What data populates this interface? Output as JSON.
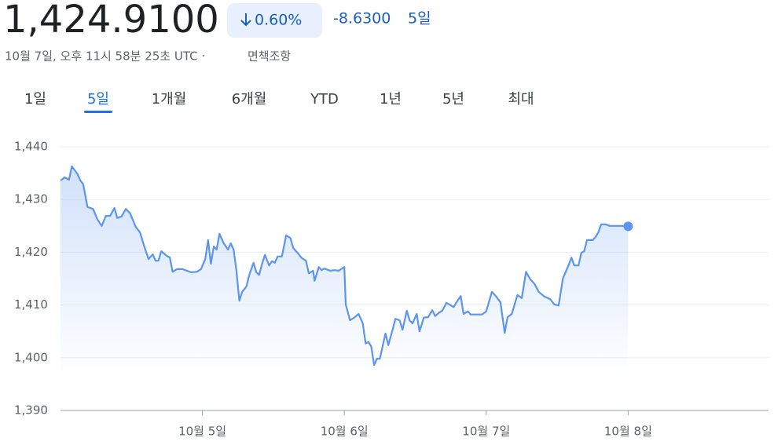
{
  "header": {
    "price": "1,424.9100",
    "change_percent": "0.60%",
    "change": "-8.6300",
    "period": "5일",
    "timestamp": "10월 7일, 오후 11시 58분 25초 UTC ·",
    "disclaimer": "면책조항"
  },
  "tabs": [
    "1일",
    "5일",
    "1개월",
    "6개월",
    "YTD",
    "1년",
    "5년",
    "최대"
  ],
  "selected_tab": 1,
  "chart_data": {
    "type": "line",
    "color": "#5b95ee",
    "x": [
      4.0,
      4.03,
      4.06,
      4.08,
      4.12,
      4.14,
      4.16,
      4.19,
      4.23,
      4.26,
      4.29,
      4.32,
      4.35,
      4.38,
      4.4,
      4.43,
      4.46,
      4.49,
      4.53,
      4.56,
      4.59,
      4.62,
      4.65,
      4.67,
      4.69,
      4.71,
      4.75,
      4.77,
      4.79,
      4.82,
      4.86,
      4.89,
      4.92,
      4.96,
      4.99,
      5.02,
      5.04,
      5.06,
      5.08,
      5.1,
      5.12,
      5.15,
      5.18,
      5.2,
      5.22,
      5.24,
      5.26,
      5.28,
      5.31,
      5.33,
      5.36,
      5.38,
      5.4,
      5.42,
      5.44,
      5.47,
      5.49,
      5.51,
      5.53,
      5.56,
      5.59,
      5.62,
      5.64,
      5.67,
      5.7,
      5.73,
      5.75,
      5.78,
      5.79,
      5.82,
      5.84,
      5.86,
      5.9,
      5.93,
      5.96,
      6.0,
      6.01,
      6.04,
      6.07,
      6.1,
      6.13,
      6.15,
      6.17,
      6.19,
      6.21,
      6.23,
      6.25,
      6.29,
      6.31,
      6.34,
      6.36,
      6.39,
      6.41,
      6.44,
      6.46,
      6.48,
      6.51,
      6.53,
      6.56,
      6.59,
      6.62,
      6.64,
      6.67,
      6.69,
      6.72,
      6.74,
      6.77,
      6.79,
      6.82,
      6.84,
      6.87,
      6.89,
      6.93,
      6.97,
      7.0,
      7.04,
      7.07,
      7.1,
      7.13,
      7.15,
      7.18,
      7.22,
      7.25,
      7.28,
      7.31,
      7.34,
      7.37,
      7.41,
      7.45,
      7.48,
      7.51,
      7.54,
      7.56,
      7.58,
      7.6,
      7.62,
      7.65,
      7.67,
      7.69,
      7.71,
      7.75,
      7.77,
      7.79,
      7.81,
      7.84,
      7.87,
      7.91,
      7.96,
      8.0
    ],
    "values": [
      1433.6,
      1434.2,
      1433.75,
      1436.3,
      1434.8,
      1433.6,
      1432.9,
      1428.6,
      1428.2,
      1426.2,
      1425.0,
      1426.9,
      1426.9,
      1428.4,
      1426.5,
      1426.8,
      1428.2,
      1427.4,
      1424.8,
      1423.8,
      1421.1,
      1418.7,
      1419.6,
      1418.4,
      1418.4,
      1420.2,
      1419.3,
      1419.0,
      1416.3,
      1416.8,
      1416.8,
      1416.5,
      1416.2,
      1416.3,
      1416.8,
      1418.7,
      1422.3,
      1417.8,
      1421.1,
      1420.5,
      1423.5,
      1421.7,
      1420.5,
      1421.7,
      1420.5,
      1416.5,
      1410.8,
      1412.5,
      1413.5,
      1415.7,
      1418.0,
      1416.2,
      1415.7,
      1417.8,
      1419.5,
      1417.5,
      1418.3,
      1418.0,
      1419.2,
      1419.2,
      1423.2,
      1422.7,
      1420.8,
      1419.9,
      1418.9,
      1418.4,
      1416.0,
      1416.5,
      1414.6,
      1417.2,
      1416.6,
      1416.9,
      1416.5,
      1416.6,
      1416.5,
      1417.2,
      1410.1,
      1407.1,
      1407.6,
      1408.3,
      1406.5,
      1402.7,
      1403.0,
      1402.1,
      1398.6,
      1399.8,
      1399.8,
      1404.6,
      1402.4,
      1405.3,
      1407.4,
      1407.1,
      1405.3,
      1408.9,
      1407.1,
      1406.5,
      1408.3,
      1405.0,
      1407.6,
      1407.7,
      1409.0,
      1407.9,
      1408.6,
      1408.9,
      1410.4,
      1410.1,
      1409.6,
      1410.5,
      1411.7,
      1408.3,
      1408.8,
      1408.2,
      1408.2,
      1408.2,
      1408.8,
      1412.5,
      1411.6,
      1410.5,
      1404.7,
      1407.7,
      1408.3,
      1411.9,
      1411.3,
      1416.3,
      1414.9,
      1414.0,
      1412.5,
      1411.6,
      1411.1,
      1410.1,
      1409.9,
      1415.0,
      1416.3,
      1417.5,
      1419.0,
      1417.5,
      1417.5,
      1419.9,
      1420.2,
      1422.3,
      1422.3,
      1422.9,
      1423.8,
      1425.3,
      1425.3,
      1425.0,
      1425.0,
      1425.0,
      1424.91
    ],
    "xlim": [
      4,
      9
    ],
    "xticks": [
      {
        "value": 5,
        "label": "10월 5일"
      },
      {
        "value": 6,
        "label": "10월 6일"
      },
      {
        "value": 7,
        "label": "10월 7일"
      },
      {
        "value": 8,
        "label": "10월 8일"
      }
    ],
    "ylim": [
      1390,
      1440
    ],
    "yticks": [
      {
        "value": 1390,
        "label": "1,390"
      },
      {
        "value": 1400,
        "label": "1,400"
      },
      {
        "value": 1410,
        "label": "1,410"
      },
      {
        "value": 1420,
        "label": "1,420"
      },
      {
        "value": 1430,
        "label": "1,430"
      },
      {
        "value": 1440,
        "label": "1,440"
      }
    ],
    "grid": true
  }
}
